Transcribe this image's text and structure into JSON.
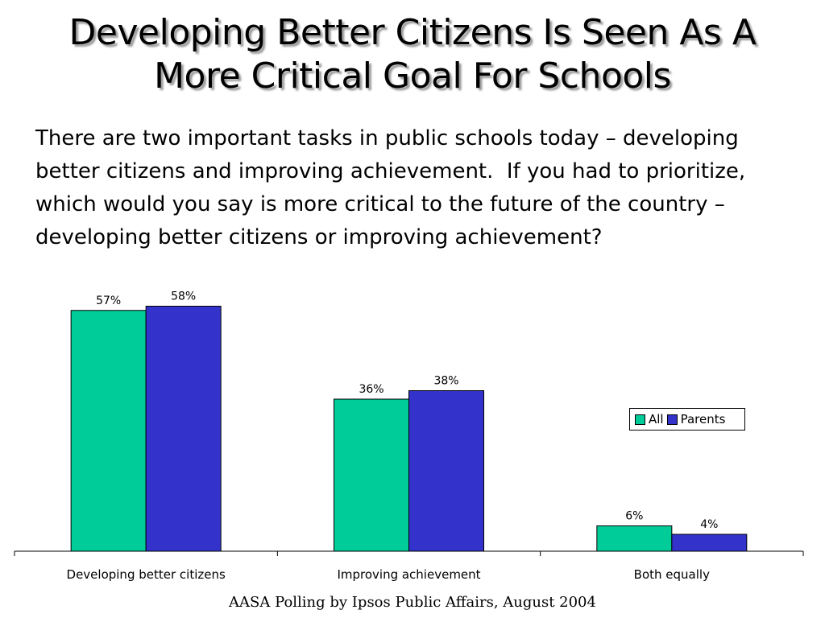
{
  "slide": {
    "title_line1": "Developing Better Citizens Is Seen As A",
    "title_line2": "More Critical Goal For Schools",
    "question": "There are two important tasks in public schools today – developing better citizens and improving achievement.  If you had to prioritize, which would you say is more critical to the future of the country – developing better citizens or improving achievement?",
    "footer": "AASA Polling by Ipsos Public Affairs, August 2004"
  },
  "chart_data": {
    "type": "bar",
    "categories": [
      "Developing better citizens",
      "Improving achievement",
      "Both equally"
    ],
    "series": [
      {
        "name": "All",
        "values": [
          57,
          36,
          6
        ],
        "labels": [
          "57%",
          "36%",
          "6%"
        ],
        "color": "#00cc99"
      },
      {
        "name": "Parents",
        "values": [
          58,
          38,
          4
        ],
        "labels": [
          "58%",
          "38%",
          "4%"
        ],
        "color": "#3333cc"
      }
    ],
    "ylim": [
      0,
      60
    ],
    "grid": false,
    "legend_position": "right"
  }
}
